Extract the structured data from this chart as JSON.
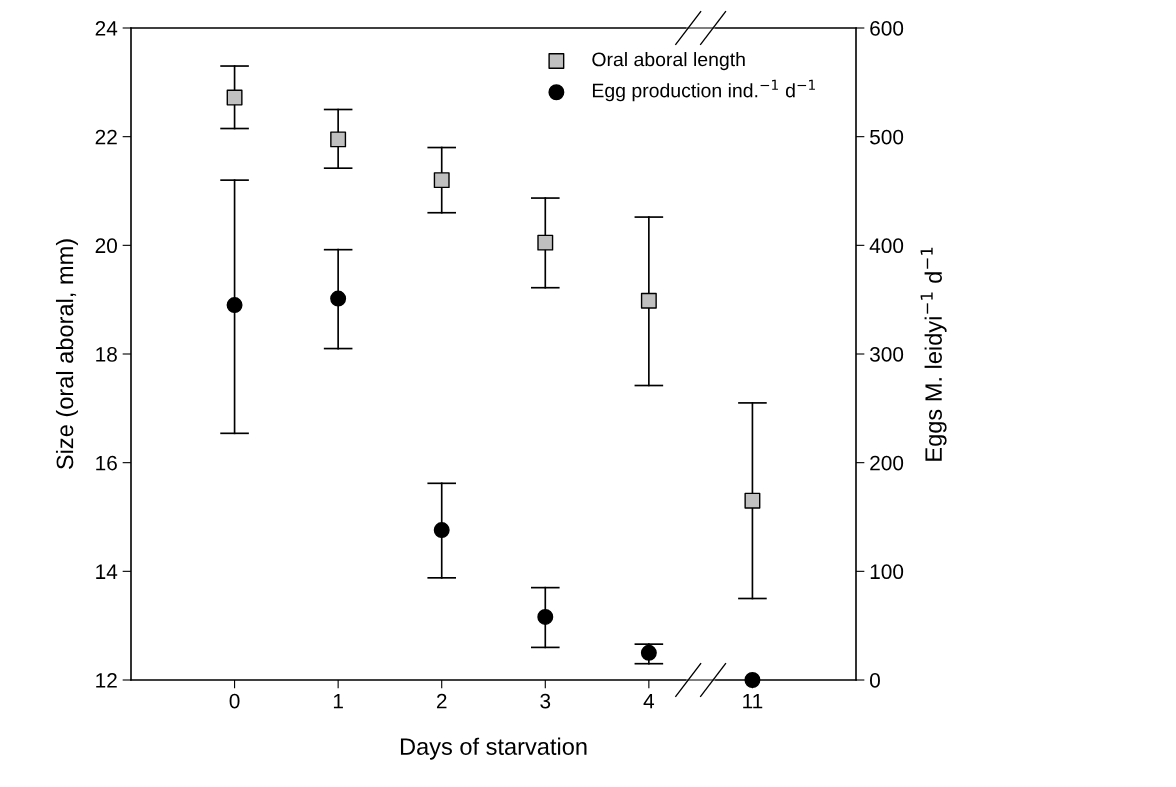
{
  "chart_data": {
    "type": "scatter",
    "xlabel": "Days of starvation",
    "ylabel": "Size (oral aboral, mm)",
    "y2label": "Eggs M. leidyi$^{−1}$ d$^{−1}$",
    "categories": [
      "0",
      "1",
      "2",
      "3",
      "4",
      "11"
    ],
    "series": [
      {
        "name": "Oral aboral length",
        "color": "#c0c0c0",
        "marker": "square",
        "values": [
          22.72,
          21.95,
          21.2,
          20.05,
          18.98,
          15.3
        ],
        "errors": [
          [
            22.15,
            23.3
          ],
          [
            21.42,
            22.5
          ],
          [
            20.6,
            21.8
          ],
          [
            19.22,
            20.87
          ],
          [
            17.42,
            20.52
          ],
          [
            13.5,
            17.1
          ]
        ]
      },
      {
        "name": "Egg production ind.$^{−1}$ d$^{−1}$",
        "color": "#000000",
        "marker": "circle",
        "axis": "y2",
        "values": [
          345,
          351,
          138,
          58,
          25,
          0
        ],
        "errors": [
          [
            227,
            460
          ],
          [
            305,
            396
          ],
          [
            94,
            181
          ],
          [
            30,
            85
          ],
          [
            15,
            33
          ],
          null
        ]
      }
    ],
    "ylim": [
      12,
      24
    ],
    "yticks": [
      12,
      14,
      16,
      18,
      20,
      22,
      24
    ],
    "y2lim": [
      0,
      600
    ],
    "y2ticks": [
      0,
      100,
      200,
      300,
      400,
      500,
      600
    ],
    "legend": "top right"
  }
}
